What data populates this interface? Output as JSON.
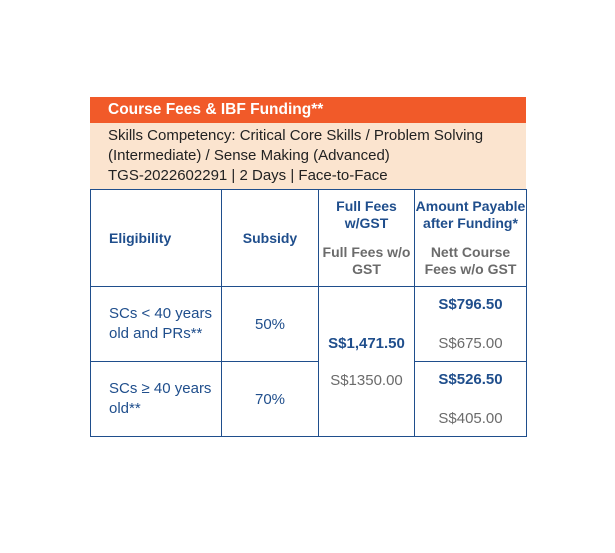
{
  "title": "Course Fees & IBF Funding**",
  "info_lines": [
    "Skills Competency: Critical Core Skills / Problem Solving",
    "(Intermediate) / Sense Making (Advanced)",
    "TGS-2022602291 | 2 Days  |  Face-to-Face"
  ],
  "headers": {
    "eligibility": "Eligibility",
    "subsidy": "Subsidy",
    "full_fees_top": "Full Fees w/GST",
    "full_fees_bottom": "Full Fees w/o GST",
    "payable_top": "Amount Payable after Funding*",
    "payable_bottom": "Nett Course Fees w/o GST"
  },
  "full_fees": {
    "with_gst": "S$1,471.50",
    "without_gst": "S$1350.00"
  },
  "rows": [
    {
      "eligibility": "SCs < 40 years old and PRs**",
      "subsidy": "50%",
      "payable_with_gst": "S$796.50",
      "payable_without_gst": "S$675.00"
    },
    {
      "eligibility": "SCs ≥ 40 years old**",
      "subsidy": "70%",
      "payable_with_gst": "S$526.50",
      "payable_without_gst": "S$405.00"
    }
  ],
  "colors": {
    "title_bar": "#f15a29",
    "info_bg": "#fbe4cf",
    "accent_blue": "#1f4e8c",
    "muted_gray": "#6b6b6b"
  }
}
